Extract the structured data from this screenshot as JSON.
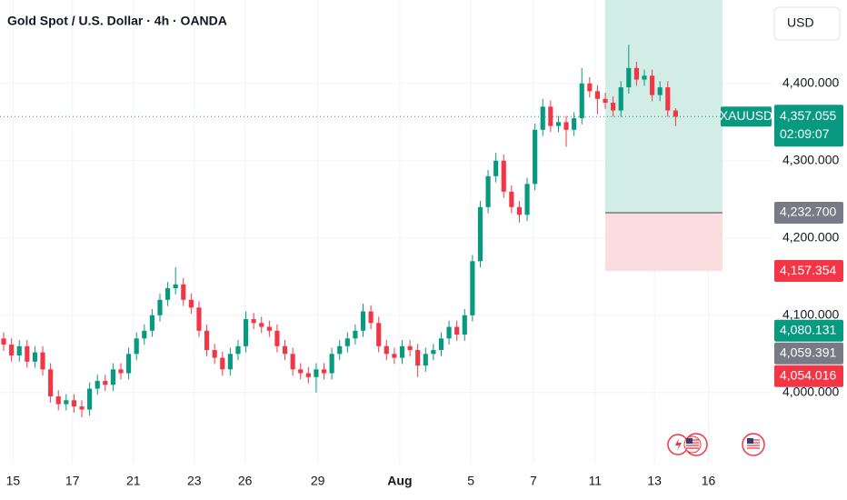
{
  "chart_data": {
    "type": "candlestick",
    "title": "Gold Spot / U.S. Dollar · 4h · OANDA",
    "currency": "USD",
    "up_color": "#089981",
    "down_color": "#f23645",
    "grid": true,
    "x": [
      0,
      1,
      2,
      3,
      4,
      5,
      6,
      7,
      8,
      9,
      10,
      11,
      12,
      13,
      14,
      15,
      16,
      17,
      18,
      19,
      20,
      21,
      22,
      23,
      24,
      25,
      26,
      27,
      28,
      29,
      30,
      31,
      32,
      33,
      34,
      35,
      36,
      37,
      38,
      39,
      40,
      41,
      42,
      43,
      44,
      45,
      46,
      47,
      48,
      49,
      50,
      51,
      52,
      53,
      54,
      55,
      56,
      57,
      58,
      59,
      60,
      61,
      62,
      63,
      64,
      65,
      66,
      67,
      68,
      69,
      70,
      71,
      72,
      73,
      74,
      75,
      76,
      77,
      78,
      79,
      80,
      81,
      82,
      83,
      84,
      85,
      86
    ],
    "open": [
      4070,
      4062,
      4048,
      4060,
      4040,
      4052,
      4030,
      3995,
      3985,
      3990,
      3982,
      3978,
      4005,
      4015,
      4010,
      4030,
      4025,
      4050,
      4070,
      4080,
      4100,
      4120,
      4135,
      4140,
      4120,
      4110,
      4080,
      4055,
      4045,
      4030,
      4050,
      4060,
      4095,
      4090,
      4085,
      4080,
      4060,
      4050,
      4030,
      4025,
      4020,
      4030,
      4025,
      4050,
      4060,
      4070,
      4080,
      4105,
      4090,
      4060,
      4050,
      4045,
      4060,
      4055,
      4035,
      4050,
      4055,
      4070,
      4085,
      4075,
      4100,
      4170,
      4240,
      4280,
      4300,
      4260,
      4240,
      4230,
      4270,
      4340,
      4370,
      4345,
      4350,
      4340,
      4355,
      4400,
      4390,
      4380,
      4375,
      4365,
      4395,
      4420,
      4405,
      4410,
      4385,
      4395,
      4365
    ],
    "high": [
      4078,
      4070,
      4068,
      4068,
      4060,
      4060,
      4038,
      4003,
      3998,
      3998,
      3990,
      4013,
      4023,
      4023,
      4038,
      4038,
      4058,
      4078,
      4088,
      4108,
      4128,
      4143,
      4162,
      4148,
      4128,
      4118,
      4088,
      4063,
      4053,
      4058,
      4068,
      4105,
      4103,
      4098,
      4093,
      4088,
      4068,
      4058,
      4038,
      4033,
      4038,
      4038,
      4058,
      4068,
      4078,
      4088,
      4115,
      4113,
      4098,
      4068,
      4058,
      4068,
      4068,
      4063,
      4058,
      4063,
      4078,
      4093,
      4093,
      4108,
      4178,
      4248,
      4288,
      4310,
      4308,
      4268,
      4248,
      4278,
      4348,
      4380,
      4378,
      4358,
      4358,
      4363,
      4420,
      4408,
      4398,
      4388,
      4383,
      4403,
      4450,
      4428,
      4418,
      4418,
      4403,
      4403,
      4368
    ],
    "low": [
      4054,
      4040,
      4040,
      4032,
      4032,
      4022,
      3987,
      3977,
      3977,
      3974,
      3968,
      3970,
      3997,
      4002,
      4002,
      4017,
      4017,
      4042,
      4062,
      4072,
      4092,
      4112,
      4127,
      4112,
      4102,
      4072,
      4047,
      4037,
      4022,
      4022,
      4042,
      4052,
      4082,
      4077,
      4072,
      4052,
      4042,
      4022,
      4017,
      4012,
      4000,
      4017,
      4017,
      4042,
      4052,
      4062,
      4072,
      4082,
      4052,
      4042,
      4037,
      4037,
      4047,
      4020,
      4027,
      4042,
      4047,
      4062,
      4067,
      4067,
      4092,
      4162,
      4232,
      4272,
      4252,
      4232,
      4220,
      4222,
      4262,
      4332,
      4337,
      4337,
      4318,
      4332,
      4347,
      4382,
      4360,
      4367,
      4357,
      4357,
      4387,
      4397,
      4397,
      4377,
      4377,
      4357,
      4345
    ],
    "close": [
      4062,
      4048,
      4060,
      4040,
      4052,
      4030,
      3995,
      3985,
      3990,
      3982,
      3978,
      4005,
      4015,
      4010,
      4030,
      4025,
      4050,
      4070,
      4080,
      4100,
      4120,
      4135,
      4140,
      4120,
      4110,
      4080,
      4055,
      4045,
      4030,
      4050,
      4060,
      4095,
      4090,
      4085,
      4080,
      4060,
      4050,
      4030,
      4025,
      4020,
      4030,
      4025,
      4050,
      4060,
      4070,
      4080,
      4105,
      4090,
      4060,
      4050,
      4045,
      4060,
      4055,
      4035,
      4050,
      4055,
      4070,
      4085,
      4075,
      4100,
      4170,
      4240,
      4280,
      4300,
      4260,
      4240,
      4230,
      4270,
      4340,
      4370,
      4345,
      4350,
      4340,
      4355,
      4400,
      4390,
      4380,
      4375,
      4365,
      4395,
      4420,
      4405,
      4410,
      4385,
      4395,
      4365,
      4357
    ],
    "xlim": [
      -0.47,
      98.4
    ],
    "ylim": [
      3908,
      4508
    ],
    "xticks": [
      {
        "value": 1.2,
        "label": "15"
      },
      {
        "value": 8.8,
        "label": "17"
      },
      {
        "value": 16.6,
        "label": "21"
      },
      {
        "value": 24.4,
        "label": "23"
      },
      {
        "value": 30.9,
        "label": "26"
      },
      {
        "value": 40.2,
        "label": "29"
      },
      {
        "value": 50.7,
        "label": "Aug"
      },
      {
        "value": 59.8,
        "label": "5"
      },
      {
        "value": 67.8,
        "label": "7"
      },
      {
        "value": 75.7,
        "label": "11"
      },
      {
        "value": 83.3,
        "label": "13"
      },
      {
        "value": 90.2,
        "label": "16"
      }
    ],
    "yticks": [
      {
        "value": 4000,
        "label": "4,000.000"
      },
      {
        "value": 4100,
        "label": "4,100.000"
      },
      {
        "value": 4200,
        "label": "4,200.000"
      },
      {
        "value": 4300,
        "label": "4,300.000"
      },
      {
        "value": 4400,
        "label": "4,400.000"
      }
    ],
    "position_tool": {
      "x_start": 77,
      "x_end": 92,
      "entry": {
        "value": 4232.7,
        "label": "4,232.700",
        "color": "#787b86"
      },
      "stop": {
        "value": 4157.354,
        "label": "4,157.354",
        "color": "#f23645"
      },
      "profit_color": "#d1ede6",
      "loss_color": "#fbdde0"
    },
    "last_price": {
      "value": 4357.055,
      "label": "4,357.055",
      "symbol": "XAUUSD",
      "countdown": "02:09:07",
      "color": "#089981"
    },
    "price_labels": [
      {
        "value": 4080.131,
        "label": "4,080.131",
        "color": "#089981"
      },
      {
        "value": 4059.391,
        "label": "4,059.391",
        "color": "#787b86"
      },
      {
        "value": 4054.016,
        "label": "4,054.016",
        "color": "#f23645"
      }
    ]
  }
}
